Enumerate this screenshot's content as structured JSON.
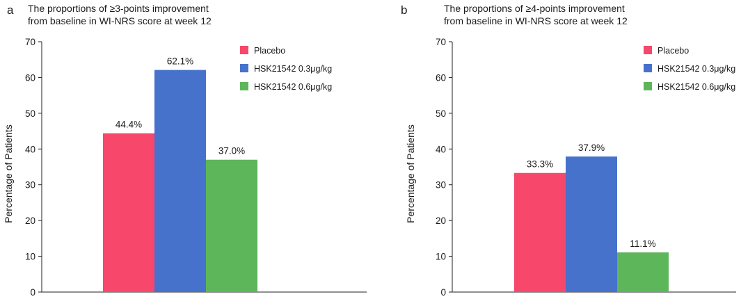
{
  "colors": {
    "placebo": "#f7476a",
    "dose_low": "#4672cc",
    "dose_high": "#5db65a",
    "axis": "#222222",
    "text": "#1a1a1a"
  },
  "chart_data": [
    {
      "type": "bar",
      "panel": "a",
      "title_lines": [
        "The proportions of ≥3-points improvement",
        "from baseline in WI-NRS score at week 12"
      ],
      "xlabel": "",
      "ylabel": "Percentage of Patients",
      "ylim": [
        0,
        70
      ],
      "yticks": [
        0,
        10,
        20,
        30,
        40,
        50,
        60,
        70
      ],
      "grid": false,
      "legend_position": "top-right",
      "series": [
        {
          "name": "Placebo",
          "value": 44.4,
          "label": "44.4%",
          "color_key": "placebo"
        },
        {
          "name": "HSK21542 0.3μg/kg",
          "value": 62.1,
          "label": "62.1%",
          "color_key": "dose_low"
        },
        {
          "name": "HSK21542 0.6μg/kg",
          "value": 37.0,
          "label": "37.0%",
          "color_key": "dose_high"
        }
      ]
    },
    {
      "type": "bar",
      "panel": "b",
      "title_lines": [
        "The proportions of ≥4-points improvement",
        "from baseline in WI-NRS score at week 12"
      ],
      "xlabel": "",
      "ylabel": "Percentage of Patients",
      "ylim": [
        0,
        70
      ],
      "yticks": [
        0,
        10,
        20,
        30,
        40,
        50,
        60,
        70
      ],
      "grid": false,
      "legend_position": "top-right",
      "series": [
        {
          "name": "Placebo",
          "value": 33.3,
          "label": "33.3%",
          "color_key": "placebo"
        },
        {
          "name": "HSK21542 0.3μg/kg",
          "value": 37.9,
          "label": "37.9%",
          "color_key": "dose_low"
        },
        {
          "name": "HSK21542 0.6μg/kg",
          "value": 11.1,
          "label": "11.1%",
          "color_key": "dose_high"
        }
      ]
    }
  ]
}
